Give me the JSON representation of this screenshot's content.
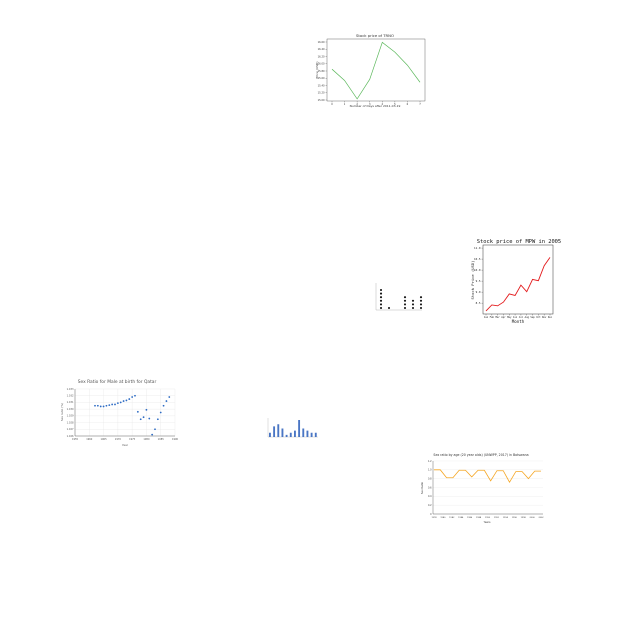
{
  "chart_data": [
    {
      "type": "line",
      "title": "Stock price of TRNO",
      "xlabel": "Number of Days after 2011-03-19",
      "ylabel": "Price (USD)",
      "x": [
        0,
        1,
        2,
        3,
        4,
        5,
        6,
        7
      ],
      "values": [
        15.85,
        15.54,
        15.03,
        15.57,
        16.59,
        16.32,
        15.96,
        15.49
      ],
      "xticks": [
        "0",
        "1",
        "2",
        "3",
        "4",
        "5",
        "6",
        "7"
      ],
      "yticks": [
        "15.00",
        "15.20",
        "15.40",
        "15.60",
        "15.80",
        "16.00",
        "16.20",
        "16.40",
        "16.60"
      ],
      "ylim": [
        15.0,
        16.6
      ],
      "color": "#5cb85c",
      "grid": false
    },
    {
      "type": "line",
      "title": "Stock price of MPW in 2005",
      "xlabel": "Month",
      "ylabel": "Stock Price (USD)",
      "categories": [
        "Jan",
        "Feb",
        "Mar",
        "Apr",
        "May",
        "Jun",
        "Jul",
        "Aug",
        "Sep",
        "Oct",
        "Nov",
        "Dec"
      ],
      "values": [
        8.15,
        8.42,
        8.38,
        8.55,
        8.92,
        8.85,
        9.32,
        9.02,
        9.58,
        9.52,
        10.2,
        10.58
      ],
      "yticks": [
        "8.5",
        "9.0",
        "9.5",
        "10.0",
        "10.5",
        "11.0"
      ],
      "ylim": [
        8.1,
        11.05
      ],
      "color": "#e31a1c",
      "grid": false
    },
    {
      "type": "scatter",
      "title": "Sex Ratio for Male at birth for Qatar",
      "xlabel": "Year",
      "ylabel": "Sex ratio (%)",
      "x": [
        1962,
        1963,
        1964,
        1965,
        1966,
        1967,
        1968,
        1969,
        1970,
        1971,
        1972,
        1973,
        1974,
        1975,
        1976,
        1977,
        1978,
        1979,
        1980,
        1981,
        1982,
        1983,
        1984,
        1985,
        1986,
        1987,
        1988
      ],
      "values": [
        1.0305,
        1.0305,
        1.0304,
        1.0304,
        1.0305,
        1.0306,
        1.0307,
        1.0307,
        1.0309,
        1.031,
        1.0312,
        1.0313,
        1.0315,
        1.0318,
        1.032,
        1.0296,
        1.0285,
        1.0288,
        1.0299,
        1.0286,
        1.0262,
        1.027,
        1.0285,
        1.0295,
        1.0305,
        1.0312,
        1.0318
      ],
      "plotted_points": 27,
      "xticks": [
        "1955",
        "1960",
        "1965",
        "1970",
        "1975",
        "1980",
        "1985",
        "1990"
      ],
      "yticks": [
        "1.026",
        "1.027",
        "1.028",
        "1.029",
        "1.030",
        "1.031",
        "1.032",
        "1.033"
      ],
      "xlim": [
        1955,
        1990
      ],
      "ylim": [
        1.026,
        1.033
      ],
      "color": "#2e6cc4",
      "grid": true
    },
    {
      "type": "scatter",
      "title": "",
      "xlabel": "",
      "ylabel": "",
      "categories": [
        "",
        "",
        "",
        "",
        "",
        ""
      ],
      "values": [
        6,
        1,
        0,
        4,
        3,
        4
      ],
      "color": "#111111",
      "grid": false
    },
    {
      "type": "bar",
      "title": "",
      "xlabel": "",
      "ylabel": "",
      "categories": [
        "",
        "",
        "",
        "",
        "",
        "",
        "",
        "",
        "",
        "",
        "",
        ""
      ],
      "values": [
        2,
        5,
        6,
        4,
        1,
        2,
        3,
        8,
        4,
        3,
        2,
        2
      ],
      "color": "#4a76c4",
      "grid": false
    },
    {
      "type": "line",
      "title": "Sex ratio by age (20 year olds) (UNWPP, 2017) in Botswana",
      "xlabel": "Years",
      "ylabel": "Sex Ratio",
      "x": [
        1978,
        1979,
        1980,
        1981,
        1982,
        1983,
        1984,
        1985,
        1986,
        1987,
        1988,
        1989,
        1990,
        1991,
        1992,
        1993,
        1994,
        1995
      ],
      "values": [
        1.0,
        1.0,
        0.82,
        0.82,
        0.99,
        0.99,
        0.84,
        0.99,
        0.99,
        0.75,
        0.98,
        0.98,
        0.72,
        0.96,
        0.96,
        0.8,
        0.97,
        0.97
      ],
      "xticks": [
        "1978",
        "1980",
        "1982",
        "1984",
        "1986",
        "1988",
        "1990",
        "1992",
        "1994",
        "1996",
        "1998",
        "2000",
        "2002"
      ],
      "yticks": [
        "0",
        "0.2",
        "0.4",
        "0.6",
        "0.8",
        "1.0",
        "1.2"
      ],
      "ylim": [
        0,
        1.2
      ],
      "color": "#f5a623",
      "grid": true
    }
  ]
}
